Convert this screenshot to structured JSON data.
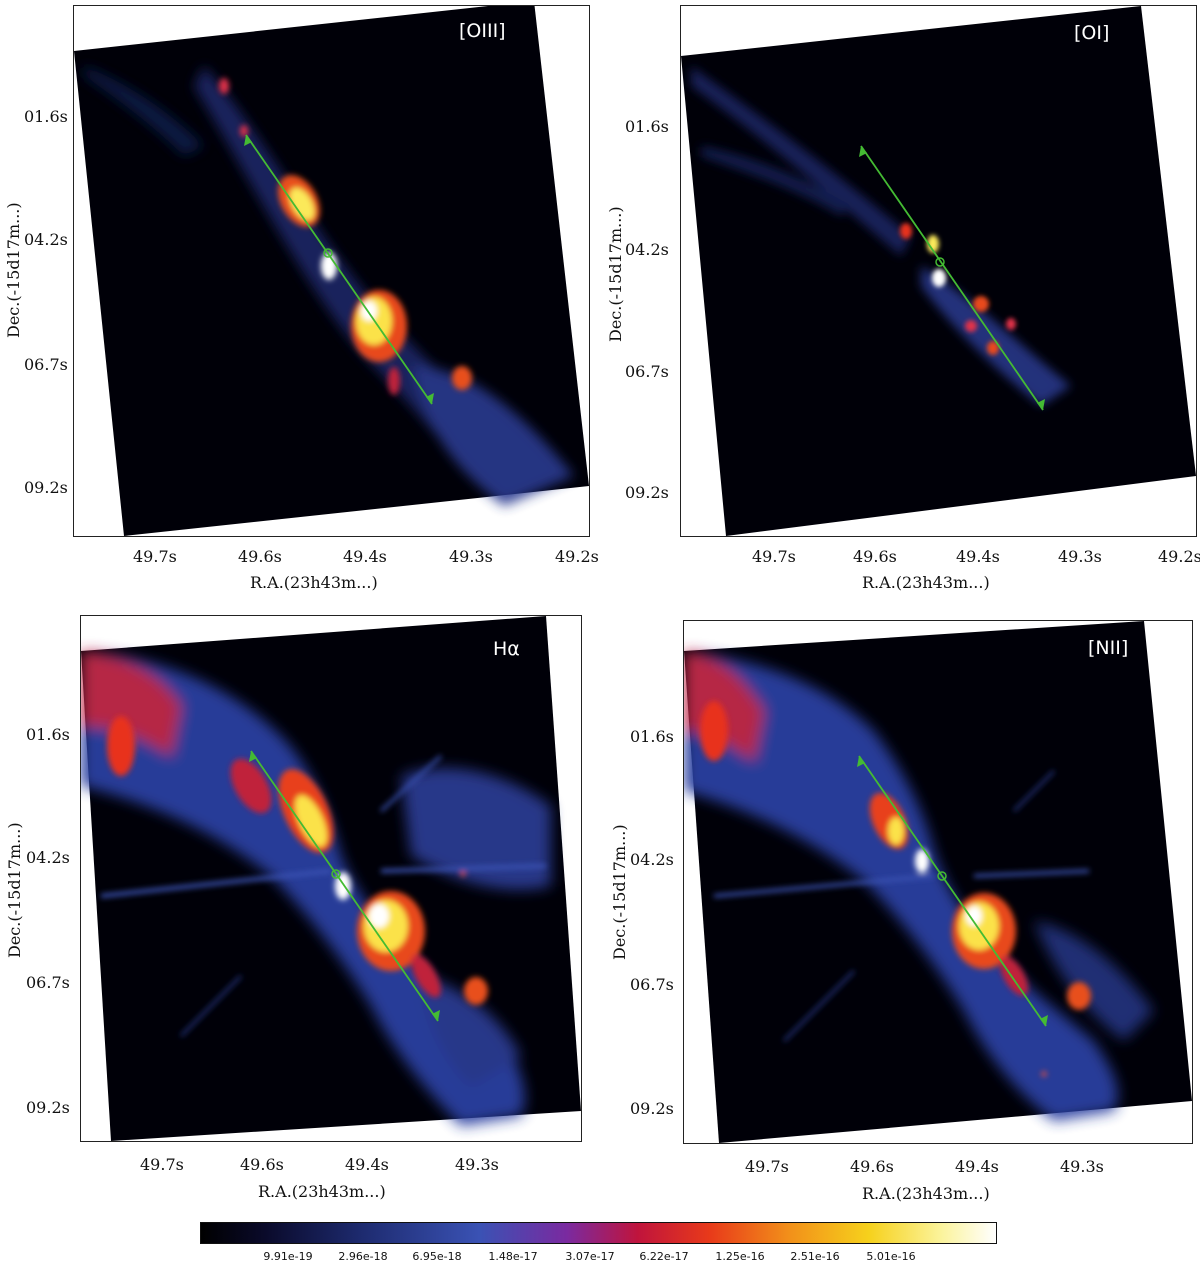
{
  "panels": [
    {
      "id": "oiii",
      "label": "[OIII]",
      "yticks": [
        "01.6s",
        "04.2s",
        "06.7s",
        "09.2s"
      ],
      "xticks": [
        "49.7s",
        "49.6s",
        "49.4s",
        "49.3s",
        "49.2s"
      ],
      "xlabel": "R.A.(23h43m...)",
      "ylabel": "Dec.(-15d17m...)"
    },
    {
      "id": "oi",
      "label": "[OI]",
      "yticks": [
        "01.6s",
        "04.2s",
        "06.7s",
        "09.2s"
      ],
      "xticks": [
        "49.7s",
        "49.6s",
        "49.4s",
        "49.3s",
        "49.2s"
      ],
      "xlabel": "R.A.(23h43m...)",
      "ylabel": "Dec.(-15d17m...)"
    },
    {
      "id": "ha",
      "label": "Hα",
      "yticks": [
        "01.6s",
        "04.2s",
        "06.7s",
        "09.2s"
      ],
      "xticks": [
        "49.7s",
        "49.6s",
        "49.4s",
        "49.3s"
      ],
      "xlabel": "R.A.(23h43m...)",
      "ylabel": "Dec.(-15d17m...)"
    },
    {
      "id": "nii",
      "label": "[NII]",
      "yticks": [
        "01.6s",
        "04.2s",
        "06.7s",
        "09.2s"
      ],
      "xticks": [
        "49.7s",
        "49.6s",
        "49.4s",
        "49.3s"
      ],
      "xlabel": "R.A.(23h43m...)",
      "ylabel": "Dec.(-15d17m...)"
    }
  ],
  "colorbar": {
    "ticks": [
      "9.91e-19",
      "2.96e-18",
      "6.95e-18",
      "1.48e-17",
      "3.07e-17",
      "6.22e-17",
      "1.25e-16",
      "2.51e-16",
      "5.01e-16"
    ]
  },
  "colors": {
    "axis_line": "#44bb33",
    "background": "#000000"
  }
}
